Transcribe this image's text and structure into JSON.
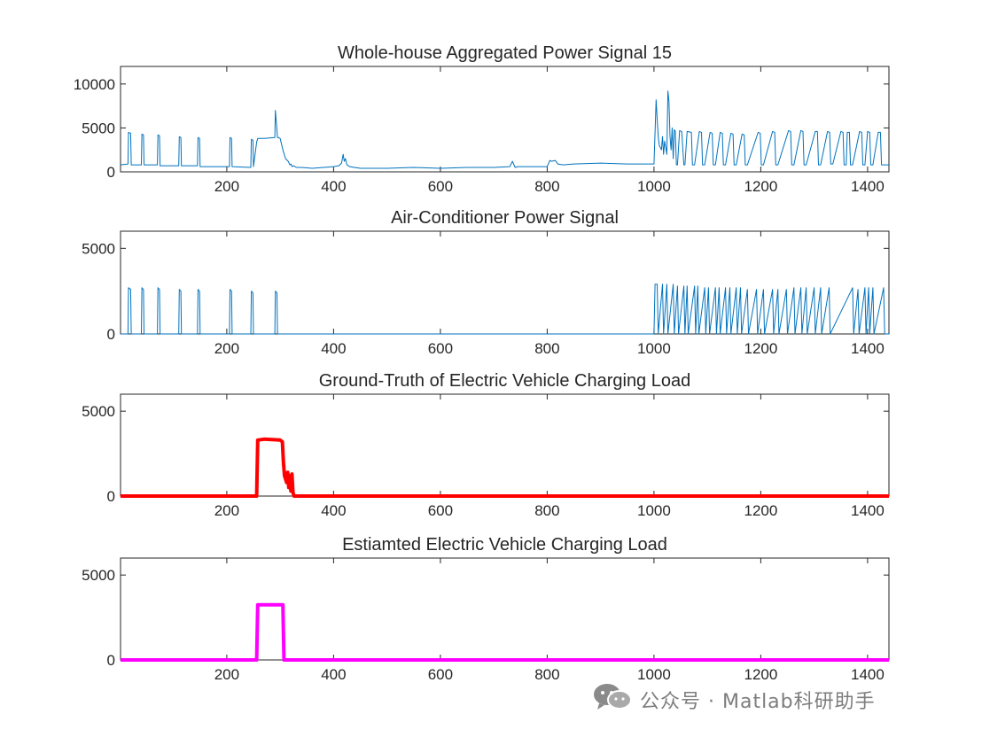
{
  "chart_data": [
    {
      "type": "line",
      "title": "Whole-house Aggregated Power Signal 15",
      "color": "#0072bd",
      "line_width": 1,
      "xlim": [
        1,
        1440
      ],
      "ylim": [
        0,
        12000
      ],
      "xticks": [
        200,
        400,
        600,
        800,
        1000,
        1200,
        1400
      ],
      "yticks": [
        0,
        5000,
        10000
      ],
      "xtick_labels": [
        "200",
        "400",
        "600",
        "800",
        "1000",
        "1200",
        "1400"
      ],
      "ytick_labels": [
        "0",
        "5000",
        "10000"
      ],
      "series": [
        {
          "x": [
            1,
            15,
            16,
            20,
            21,
            40,
            41,
            44,
            45,
            70,
            71,
            74,
            75,
            110,
            111,
            114,
            115,
            145,
            146,
            149,
            150,
            205,
            206,
            209,
            210,
            245,
            246,
            249,
            250,
            256,
            258,
            270,
            290,
            291,
            293,
            295,
            297,
            300,
            305,
            310,
            315,
            318,
            320,
            322,
            325,
            330,
            340,
            360,
            400,
            410,
            415,
            418,
            420,
            422,
            425,
            430,
            450,
            500,
            550,
            600,
            650,
            700,
            730,
            735,
            740,
            745,
            800,
            805,
            808,
            815,
            820,
            830,
            850,
            900,
            950,
            1000,
            1002,
            1004,
            1006,
            1008,
            1010,
            1014,
            1016,
            1018,
            1020,
            1024,
            1026,
            1028,
            1030,
            1032,
            1034,
            1036,
            1038,
            1040,
            1042,
            1044,
            1048,
            1052,
            1056,
            1058,
            1062,
            1070,
            1072,
            1076,
            1085,
            1089,
            1091,
            1095,
            1105,
            1109,
            1111,
            1115,
            1124,
            1128,
            1130,
            1134,
            1144,
            1148,
            1150,
            1154,
            1165,
            1169,
            1171,
            1175,
            1195,
            1199,
            1201,
            1205,
            1222,
            1226,
            1228,
            1232,
            1252,
            1256,
            1258,
            1262,
            1275,
            1279,
            1281,
            1285,
            1302,
            1306,
            1308,
            1312,
            1325,
            1329,
            1331,
            1335,
            1350,
            1354,
            1356,
            1360,
            1362,
            1366,
            1368,
            1372,
            1385,
            1389,
            1391,
            1395,
            1400,
            1404,
            1406,
            1410,
            1420,
            1424,
            1426,
            1430,
            1440
          ],
          "y": [
            800,
            900,
            4500,
            4400,
            800,
            800,
            4300,
            4200,
            800,
            800,
            4200,
            4100,
            700,
            700,
            4000,
            3900,
            700,
            700,
            3900,
            3800,
            600,
            600,
            3900,
            3800,
            600,
            500,
            3700,
            3600,
            600,
            3400,
            3800,
            3800,
            3900,
            7000,
            5500,
            3900,
            3900,
            3800,
            2500,
            1500,
            1200,
            800,
            900,
            600,
            700,
            500,
            500,
            400,
            600,
            700,
            1000,
            2000,
            1200,
            1500,
            800,
            600,
            400,
            400,
            500,
            400,
            500,
            500,
            600,
            1200,
            500,
            600,
            600,
            1300,
            1200,
            1300,
            900,
            800,
            900,
            1000,
            900,
            900,
            4500,
            8200,
            6000,
            4000,
            3000,
            2500,
            4000,
            2000,
            3500,
            2000,
            9200,
            8000,
            4000,
            2500,
            5000,
            1500,
            4800,
            4600,
            800,
            800,
            4700,
            4600,
            800,
            800,
            4600,
            4500,
            800,
            800,
            4600,
            4500,
            800,
            800,
            4500,
            4400,
            800,
            800,
            4500,
            4400,
            800,
            800,
            4400,
            4300,
            800,
            800,
            4300,
            4200,
            800,
            800,
            4500,
            4400,
            800,
            800,
            4600,
            4500,
            800,
            800,
            4700,
            4600,
            800,
            800,
            4700,
            4600,
            800,
            800,
            4600,
            4600,
            800,
            800,
            4600,
            4500,
            900,
            900,
            4600,
            4500,
            800,
            800,
            4500,
            4500,
            800,
            800,
            4600,
            4500,
            800,
            800,
            4600,
            4500,
            800,
            800,
            4500,
            4500,
            800,
            800,
            800
          ]
        }
      ]
    },
    {
      "type": "line",
      "title": "Air-Conditioner Power Signal",
      "color": "#0072bd",
      "line_width": 1,
      "xlim": [
        1,
        1440
      ],
      "ylim": [
        0,
        6000
      ],
      "xticks": [
        200,
        400,
        600,
        800,
        1000,
        1200,
        1400
      ],
      "yticks": [
        0,
        5000
      ],
      "xtick_labels": [
        "200",
        "400",
        "600",
        "800",
        "1000",
        "1200",
        "1400"
      ],
      "ytick_labels": [
        "0",
        "5000"
      ],
      "series": [
        {
          "x": [
            1,
            15,
            16,
            20,
            21,
            40,
            41,
            44,
            45,
            70,
            71,
            74,
            75,
            110,
            111,
            114,
            115,
            145,
            146,
            149,
            150,
            205,
            206,
            209,
            210,
            245,
            246,
            249,
            250,
            290,
            291,
            294,
            295,
            1000,
            1002,
            1006,
            1008,
            1016,
            1018,
            1024,
            1026,
            1036,
            1038,
            1044,
            1046,
            1056,
            1058,
            1062,
            1064,
            1076,
            1078,
            1082,
            1084,
            1095,
            1097,
            1102,
            1104,
            1115,
            1117,
            1122,
            1124,
            1134,
            1136,
            1142,
            1144,
            1154,
            1156,
            1162,
            1164,
            1175,
            1177,
            1192,
            1194,
            1205,
            1207,
            1222,
            1224,
            1232,
            1234,
            1248,
            1250,
            1262,
            1264,
            1275,
            1277,
            1285,
            1287,
            1300,
            1302,
            1312,
            1314,
            1328,
            1330,
            1372,
            1374,
            1382,
            1384,
            1395,
            1397,
            1402,
            1404,
            1410,
            1412,
            1430,
            1432,
            1440
          ],
          "y": [
            0,
            0,
            2700,
            2600,
            0,
            0,
            2700,
            2600,
            0,
            0,
            2700,
            2600,
            0,
            0,
            2600,
            2500,
            0,
            0,
            2600,
            2500,
            0,
            0,
            2600,
            2500,
            0,
            0,
            2500,
            2400,
            0,
            0,
            2500,
            2400,
            0,
            0,
            2900,
            2900,
            0,
            2900,
            0,
            2900,
            0,
            2900,
            0,
            2800,
            0,
            2800,
            0,
            2800,
            0,
            2800,
            0,
            2800,
            0,
            2700,
            0,
            2700,
            0,
            2700,
            0,
            2700,
            0,
            2700,
            0,
            2700,
            0,
            2700,
            0,
            2700,
            0,
            2600,
            0,
            2600,
            0,
            2600,
            0,
            2600,
            0,
            2600,
            0,
            2600,
            0,
            2700,
            0,
            2700,
            0,
            2700,
            0,
            2700,
            0,
            2700,
            0,
            2700,
            0,
            2700,
            0,
            2600,
            0,
            2700,
            0,
            2700,
            0,
            2700,
            0,
            2700,
            0,
            0
          ]
        }
      ]
    },
    {
      "type": "line",
      "title": "Ground-Truth of Electric Vehicle Charging Load",
      "color": "#ff0000",
      "line_width": 4,
      "xlim": [
        1,
        1440
      ],
      "ylim": [
        0,
        6000
      ],
      "xticks": [
        200,
        400,
        600,
        800,
        1000,
        1200,
        1400
      ],
      "yticks": [
        0,
        5000
      ],
      "xtick_labels": [
        "200",
        "400",
        "600",
        "800",
        "1000",
        "1200",
        "1400"
      ],
      "ytick_labels": [
        "0",
        "5000"
      ],
      "series": [
        {
          "x": [
            1,
            256,
            258,
            270,
            300,
            304,
            306,
            308,
            310,
            312,
            314,
            316,
            318,
            320,
            322,
            324,
            326,
            1440
          ],
          "y": [
            0,
            0,
            3300,
            3350,
            3300,
            3200,
            2000,
            1200,
            1000,
            800,
            1400,
            500,
            1200,
            300,
            1300,
            200,
            0,
            0
          ]
        }
      ]
    },
    {
      "type": "line",
      "title": "Estiamted Electric Vehicle Charging Load",
      "color": "#ff00ff",
      "line_width": 4,
      "xlim": [
        1,
        1440
      ],
      "ylim": [
        0,
        6000
      ],
      "xticks": [
        200,
        400,
        600,
        800,
        1000,
        1200,
        1400
      ],
      "yticks": [
        0,
        5000
      ],
      "xtick_labels": [
        "200",
        "400",
        "600",
        "800",
        "1000",
        "1200",
        "1400"
      ],
      "ytick_labels": [
        "0",
        "5000"
      ],
      "series": [
        {
          "x": [
            1,
            256,
            258,
            305,
            307,
            1440
          ],
          "y": [
            0,
            0,
            3250,
            3250,
            0,
            0
          ]
        }
      ]
    }
  ],
  "watermark": {
    "icon": "wechat-icon",
    "text": "公众号 · Matlab科研助手"
  }
}
